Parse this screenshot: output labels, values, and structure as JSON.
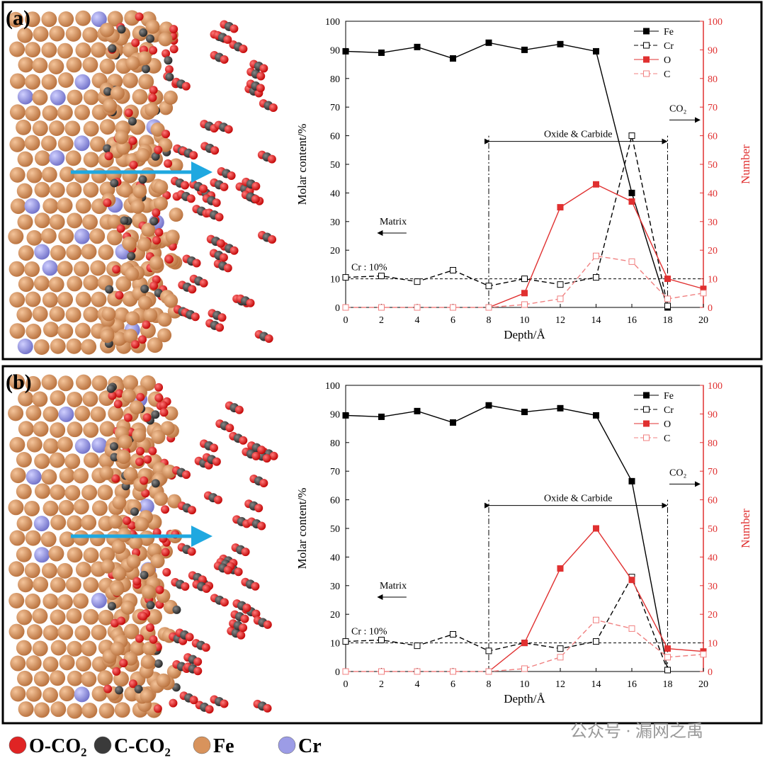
{
  "chart_data": [
    {
      "type": "line",
      "label": "(a)",
      "xlabel": "Depth/Å",
      "ylabel": "Molar content/%",
      "y2label": "Number",
      "x": [
        0,
        2,
        4,
        6,
        8,
        10,
        12,
        14,
        16,
        18,
        20
      ],
      "xlim": [
        0,
        20
      ],
      "xticks": [
        0,
        2,
        4,
        6,
        8,
        10,
        12,
        14,
        16,
        18,
        20
      ],
      "ylim": [
        0,
        100
      ],
      "yticks": [
        0,
        10,
        20,
        30,
        40,
        50,
        60,
        70,
        80,
        90,
        100
      ],
      "y2lim": [
        0,
        100
      ],
      "y2ticks": [
        0,
        10,
        20,
        30,
        40,
        50,
        60,
        70,
        80,
        90,
        100
      ],
      "series": [
        {
          "name": "Fe",
          "color": "#000000",
          "dashed": false,
          "filled": true,
          "values": [
            89.5,
            89,
            91,
            87,
            92.5,
            90,
            92,
            89.5,
            40,
            0,
            null
          ]
        },
        {
          "name": "Cr",
          "color": "#000000",
          "dashed": true,
          "filled": false,
          "values": [
            10.5,
            11,
            9,
            13,
            7.5,
            10,
            8,
            10.5,
            60,
            0.5,
            null
          ]
        },
        {
          "name": "O",
          "color": "#e03030",
          "dashed": false,
          "filled": true,
          "axis": "y2",
          "values": [
            null,
            null,
            null,
            null,
            0,
            5,
            35,
            43,
            37,
            10,
            6.5
          ]
        },
        {
          "name": "C",
          "color": "#f08080",
          "dashed": true,
          "filled": false,
          "axis": "y2",
          "values": [
            0,
            0,
            0,
            0,
            0,
            1,
            3,
            18,
            16,
            3,
            5
          ]
        }
      ],
      "reference_line": {
        "value": 10,
        "label": "Cr : 10%"
      },
      "region": {
        "xrange": [
          8,
          18
        ],
        "label": "Oxide & Carbide"
      },
      "annotations": [
        "Matrix",
        "CO₂"
      ]
    },
    {
      "type": "line",
      "label": "(b)",
      "xlabel": "Depth/Å",
      "ylabel": "Molar content/%",
      "y2label": "Number",
      "x": [
        0,
        2,
        4,
        6,
        8,
        10,
        12,
        14,
        16,
        18,
        20
      ],
      "xlim": [
        0,
        20
      ],
      "xticks": [
        0,
        2,
        4,
        6,
        8,
        10,
        12,
        14,
        16,
        18,
        20
      ],
      "ylim": [
        0,
        100
      ],
      "yticks": [
        0,
        10,
        20,
        30,
        40,
        50,
        60,
        70,
        80,
        90,
        100
      ],
      "y2lim": [
        0,
        100
      ],
      "y2ticks": [
        0,
        10,
        20,
        30,
        40,
        50,
        60,
        70,
        80,
        90,
        100
      ],
      "series": [
        {
          "name": "Fe",
          "color": "#000000",
          "dashed": false,
          "filled": true,
          "values": [
            89.5,
            89,
            91,
            87,
            93,
            90.7,
            92,
            89.5,
            66.5,
            0.5,
            null
          ]
        },
        {
          "name": "Cr",
          "color": "#000000",
          "dashed": true,
          "filled": false,
          "values": [
            10.5,
            11,
            9,
            13,
            7.2,
            10,
            8,
            10.5,
            33,
            0.5,
            null
          ]
        },
        {
          "name": "O",
          "color": "#e03030",
          "dashed": false,
          "filled": true,
          "axis": "y2",
          "values": [
            null,
            null,
            null,
            null,
            0,
            10,
            36,
            50,
            32,
            8,
            7
          ]
        },
        {
          "name": "C",
          "color": "#f08080",
          "dashed": true,
          "filled": false,
          "axis": "y2",
          "values": [
            0,
            0,
            0,
            0,
            0,
            1,
            5,
            18,
            15,
            5,
            6
          ]
        }
      ],
      "reference_line": {
        "value": 10,
        "label": "Cr : 10%"
      },
      "region": {
        "xrange": [
          8,
          18
        ],
        "label": "Oxide & Carbide"
      },
      "annotations": [
        "Matrix",
        "CO₂"
      ]
    }
  ],
  "atom_legend": [
    {
      "name": "O-CO₂",
      "color": "#e02424"
    },
    {
      "name": "C-CO₂",
      "color": "#3a3a3a"
    },
    {
      "name": "Fe",
      "color": "#d8935c"
    },
    {
      "name": "Cr",
      "color": "#9c9ce6"
    }
  ],
  "watermark": "公众号 · 漏网之禹"
}
